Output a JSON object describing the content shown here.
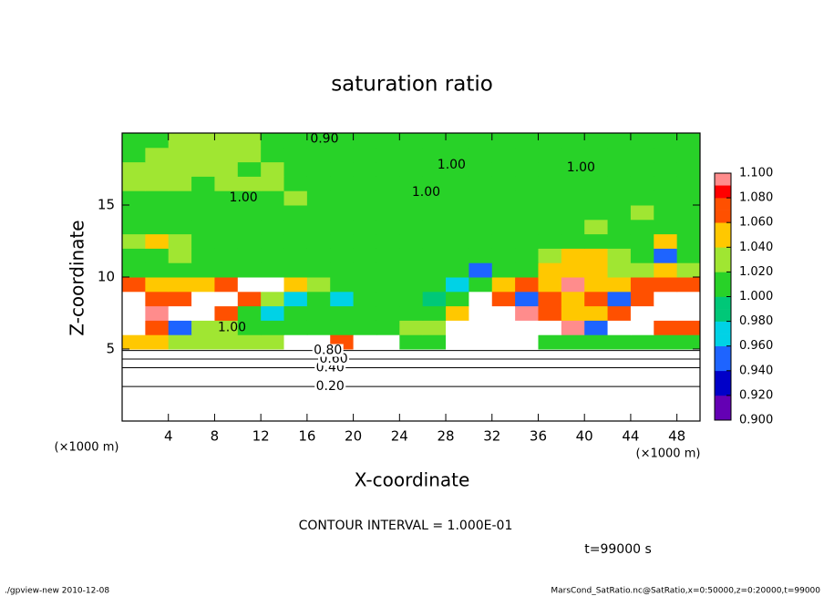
{
  "chart_data": {
    "type": "heatmap",
    "title": "saturation ratio",
    "xlabel": "X-coordinate",
    "ylabel": "Z-coordinate",
    "xunit": "(×1000 m)",
    "yunit": "(×1000 m)",
    "xlim": [
      0,
      50
    ],
    "ylim": [
      0,
      20
    ],
    "xticks": [
      4,
      8,
      12,
      16,
      20,
      24,
      28,
      32,
      36,
      40,
      44,
      48
    ],
    "yticks": [
      5,
      10,
      15
    ],
    "x": [
      1,
      3,
      5,
      7,
      9,
      11,
      13,
      15,
      17,
      19,
      21,
      23,
      25,
      27,
      29,
      31,
      33,
      35,
      37,
      39,
      41,
      43,
      45,
      47,
      49
    ],
    "y": [
      0.5,
      1.5,
      2.5,
      3.5,
      4.5,
      5.5,
      6.5,
      7.5,
      8.5,
      9.5,
      10.5,
      11.5,
      12.5,
      13.5,
      14.5,
      15.5,
      16.5,
      17.5,
      18.5,
      19.5
    ],
    "z": [
      [
        0.05,
        0.05,
        0.05,
        0.05,
        0.05,
        0.05,
        0.05,
        0.05,
        0.05,
        0.05,
        0.05,
        0.05,
        0.05,
        0.05,
        0.05,
        0.05,
        0.05,
        0.05,
        0.05,
        0.05,
        0.05,
        0.05,
        0.05,
        0.05,
        0.05
      ],
      [
        0.15,
        0.15,
        0.15,
        0.15,
        0.15,
        0.15,
        0.15,
        0.15,
        0.15,
        0.15,
        0.15,
        0.15,
        0.15,
        0.15,
        0.15,
        0.15,
        0.15,
        0.15,
        0.15,
        0.15,
        0.15,
        0.15,
        0.15,
        0.15,
        0.15
      ],
      [
        0.25,
        0.25,
        0.25,
        0.25,
        0.25,
        0.25,
        0.25,
        0.25,
        0.25,
        0.25,
        0.25,
        0.25,
        0.25,
        0.25,
        0.25,
        0.25,
        0.25,
        0.25,
        0.25,
        0.25,
        0.25,
        0.25,
        0.25,
        0.25,
        0.25
      ],
      [
        0.38,
        0.38,
        0.38,
        0.38,
        0.38,
        0.38,
        0.38,
        0.38,
        0.38,
        0.38,
        0.38,
        0.38,
        0.38,
        0.38,
        0.38,
        0.38,
        0.38,
        0.38,
        0.38,
        0.38,
        0.38,
        0.38,
        0.38,
        0.38,
        0.38
      ],
      [
        0.65,
        0.65,
        0.65,
        0.65,
        0.65,
        0.65,
        0.65,
        0.65,
        0.65,
        0.65,
        0.65,
        0.65,
        0.65,
        0.65,
        0.65,
        0.65,
        0.65,
        0.65,
        0.65,
        0.65,
        0.65,
        0.65,
        0.65,
        0.65,
        0.65
      ],
      [
        1.05,
        1.04,
        1.03,
        1.03,
        1.03,
        1.02,
        1.03,
        1.12,
        1.12,
        1.06,
        1.12,
        1.12,
        1.0,
        1.0,
        1.12,
        1.12,
        1.12,
        1.12,
        1.0,
        1.01,
        1.0,
        1.0,
        1.0,
        1.0,
        1.0
      ],
      [
        1.12,
        1.07,
        0.94,
        1.02,
        1.03,
        1.0,
        1.0,
        1.0,
        1.0,
        1.0,
        1.0,
        1.01,
        1.02,
        1.02,
        1.12,
        1.12,
        1.12,
        1.12,
        1.12,
        1.08,
        0.95,
        1.12,
        1.12,
        1.07,
        1.06
      ],
      [
        1.12,
        1.08,
        1.12,
        1.12,
        1.06,
        1.0,
        0.96,
        1.0,
        1.0,
        1.0,
        1.0,
        1.0,
        1.0,
        1.0,
        1.05,
        1.12,
        1.12,
        1.08,
        1.07,
        1.05,
        1.04,
        1.07,
        1.12,
        1.12,
        1.12
      ],
      [
        1.12,
        1.06,
        1.07,
        1.12,
        1.12,
        1.07,
        1.02,
        0.97,
        1.0,
        0.96,
        1.0,
        1.0,
        1.0,
        0.98,
        1.0,
        1.12,
        1.07,
        0.94,
        1.07,
        1.05,
        1.06,
        0.95,
        1.07,
        1.12,
        1.12
      ],
      [
        1.07,
        1.05,
        1.045,
        1.04,
        1.06,
        1.12,
        1.12,
        1.05,
        1.02,
        1.0,
        1.0,
        1.0,
        1.0,
        1.0,
        0.96,
        1.0,
        1.05,
        1.06,
        1.04,
        1.08,
        1.05,
        1.04,
        1.06,
        1.07,
        1.06
      ],
      [
        1.0,
        1.01,
        1.0,
        1.0,
        1.0,
        1.0,
        1.0,
        1.0,
        1.0,
        1.0,
        1.0,
        1.0,
        1.0,
        1.0,
        1.0,
        0.95,
        1.0,
        1.0,
        1.05,
        1.04,
        1.04,
        1.03,
        1.03,
        1.05,
        1.03
      ],
      [
        1.01,
        1.0,
        1.025,
        1.01,
        1.0,
        1.0,
        1.0,
        1.0,
        1.0,
        1.0,
        1.0,
        1.0,
        1.0,
        1.0,
        1.0,
        1.0,
        1.0,
        1.0,
        1.02,
        1.05,
        1.04,
        1.03,
        1.01,
        0.95,
        1.0
      ],
      [
        1.03,
        1.045,
        1.03,
        1.0,
        1.0,
        1.0,
        1.0,
        1.0,
        1.0,
        1.0,
        1.0,
        1.0,
        1.0,
        1.0,
        1.0,
        1.0,
        1.0,
        1.01,
        1.0,
        1.0,
        1.0,
        1.0,
        1.01,
        1.045,
        1.0
      ],
      [
        1.0,
        1.0,
        1.0,
        1.0,
        1.0,
        1.0,
        1.01,
        1.0,
        1.0,
        1.0,
        1.0,
        1.0,
        1.0,
        1.0,
        1.0,
        1.0,
        1.0,
        1.0,
        1.0,
        1.01,
        1.02,
        1.01,
        1.0,
        1.0,
        1.0
      ],
      [
        1.0,
        1.01,
        1.0,
        1.0,
        1.0,
        1.0,
        1.0,
        1.0,
        1.0,
        1.01,
        1.0,
        1.0,
        1.0,
        1.0,
        1.0,
        1.0,
        1.0,
        1.0,
        1.0,
        1.0,
        1.0,
        1.0,
        1.02,
        1.0,
        1.0
      ],
      [
        1.0,
        1.0,
        1.01,
        1.0,
        1.0,
        1.01,
        1.0,
        1.02,
        1.0,
        1.0,
        1.0,
        1.0,
        1.0,
        1.0,
        1.0,
        1.0,
        1.0,
        1.0,
        1.01,
        1.0,
        1.0,
        1.0,
        1.0,
        1.0,
        1.0
      ],
      [
        1.025,
        1.03,
        1.02,
        1.01,
        1.02,
        1.03,
        1.025,
        1.0,
        1.0,
        1.0,
        1.0,
        1.0,
        1.0,
        1.0,
        1.0,
        1.0,
        1.01,
        1.0,
        1.0,
        1.0,
        1.0,
        1.0,
        1.0,
        1.0,
        1.0
      ],
      [
        1.03,
        1.035,
        1.03,
        1.03,
        1.02,
        1.01,
        1.02,
        1.0,
        1.0,
        1.0,
        1.0,
        1.0,
        1.0,
        1.0,
        1.0,
        1.0,
        1.0,
        1.0,
        1.0,
        1.0,
        1.0,
        1.0,
        1.0,
        1.0,
        1.0
      ],
      [
        1.0,
        1.02,
        1.03,
        1.03,
        1.025,
        1.02,
        1.01,
        1.0,
        1.0,
        1.0,
        1.0,
        1.0,
        1.0,
        1.0,
        1.0,
        1.0,
        1.0,
        1.0,
        1.0,
        1.0,
        1.0,
        1.01,
        1.0,
        1.0,
        1.0
      ],
      [
        1.01,
        1.01,
        1.025,
        1.025,
        1.03,
        1.02,
        1.01,
        1.01,
        1.0,
        1.0,
        1.0,
        1.0,
        1.0,
        1.0,
        1.01,
        1.0,
        1.0,
        1.0,
        1.0,
        1.0,
        1.0,
        1.0,
        1.01,
        1.0,
        1.0
      ]
    ],
    "levels": [
      {
        "value": 0.9,
        "label": "0.900"
      },
      {
        "value": 0.92,
        "label": "0.920"
      },
      {
        "value": 0.94,
        "label": "0.940"
      },
      {
        "value": 0.96,
        "label": "0.960"
      },
      {
        "value": 0.98,
        "label": "0.980"
      },
      {
        "value": 1.0,
        "label": "1.000"
      },
      {
        "value": 1.02,
        "label": "1.020"
      },
      {
        "value": 1.04,
        "label": "1.040"
      },
      {
        "value": 1.06,
        "label": "1.060"
      },
      {
        "value": 1.08,
        "label": "1.080"
      },
      {
        "value": 1.1,
        "label": "1.100"
      }
    ],
    "colors": [
      "#6400b4",
      "#0000c8",
      "#1e64ff",
      "#00d2e6",
      "#00c878",
      "#28d228",
      "#a0e632",
      "#ffc800",
      "#ff5000",
      "#ff0000"
    ],
    "top_color": "#ff8c8c",
    "outside_color": "#ffffff",
    "contour_labels": [
      {
        "value": 0.2,
        "label": "0.20",
        "x": 18,
        "y": 2.4
      },
      {
        "value": 0.4,
        "label": "0.40",
        "x": 18,
        "y": 3.7
      },
      {
        "value": 0.6,
        "label": "0.60",
        "x": 18.3,
        "y": 4.3
      },
      {
        "value": 0.8,
        "label": "0.80",
        "x": 17.8,
        "y": 4.9
      },
      {
        "value": 0.9,
        "label": "0.90",
        "x": 17.5,
        "y": 19.6
      },
      {
        "value": 1.0,
        "label": "1.00",
        "x": 9.5,
        "y": 6.5
      },
      {
        "value": 1.0,
        "label": "1.00",
        "x": 10.5,
        "y": 15.5
      },
      {
        "value": 1.0,
        "label": "1.00",
        "x": 26.3,
        "y": 15.9
      },
      {
        "value": 1.0,
        "label": "1.00",
        "x": 28.5,
        "y": 17.8
      },
      {
        "value": 1.0,
        "label": "1.00",
        "x": 39.7,
        "y": 17.6
      }
    ],
    "note": "CONTOUR INTERVAL = 1.000E-01",
    "time": "t=99000 s",
    "footer_left": "./gpview-new  2010-12-08",
    "footer_right": "MarsCond_SatRatio.nc@SatRatio,x=0:50000,z=0:20000,t=99000"
  }
}
